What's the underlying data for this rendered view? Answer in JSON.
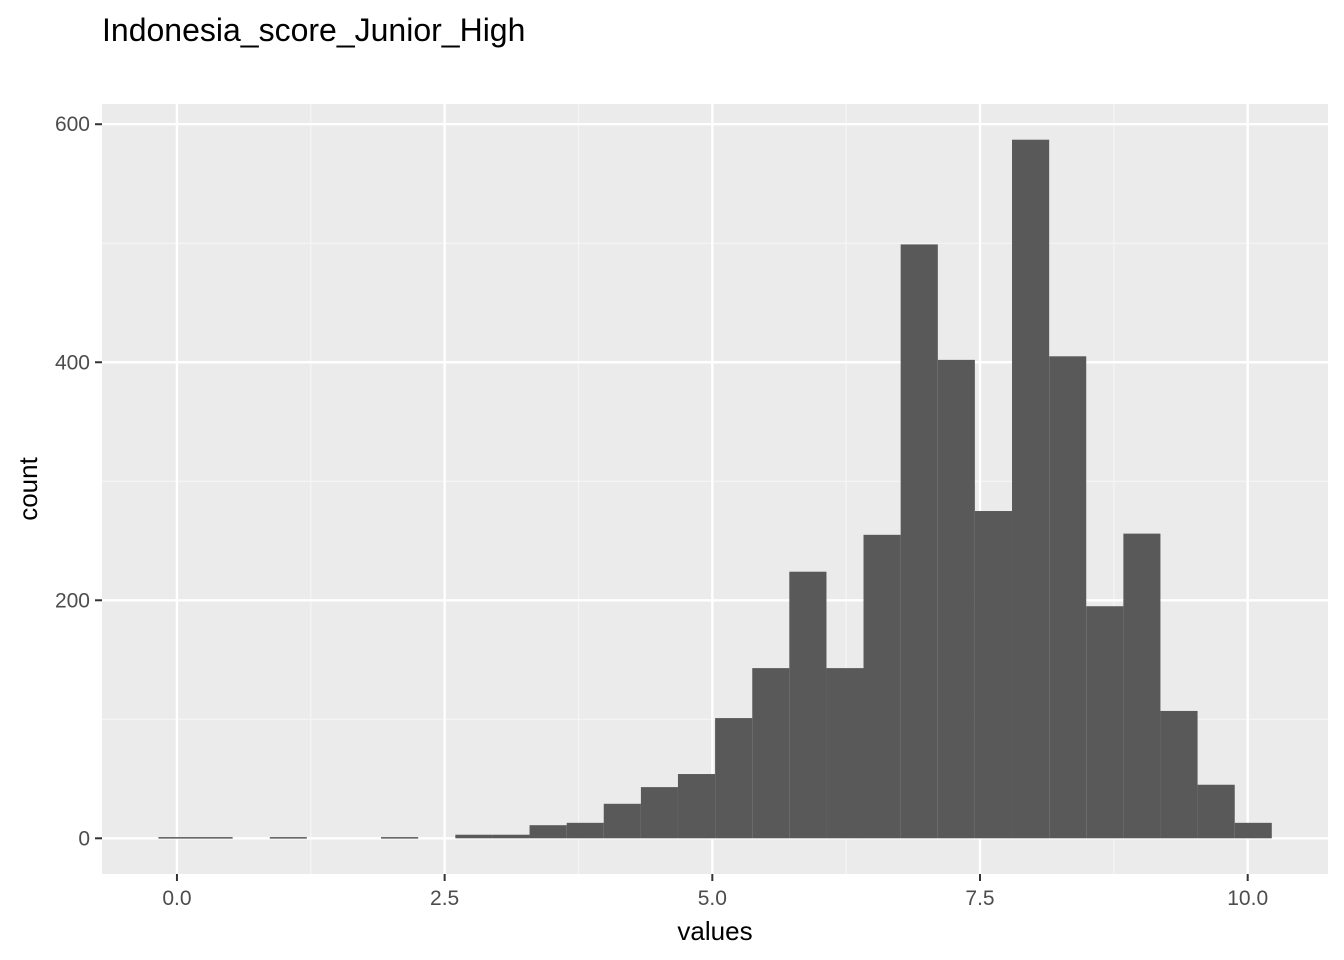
{
  "chart_data": {
    "type": "histogram",
    "title": "Indonesia_score_Junior_High",
    "xlabel": "values",
    "ylabel": "count",
    "xlim": [
      -0.7,
      10.75
    ],
    "ylim": [
      -30,
      617
    ],
    "x_ticks": [
      0.0,
      2.5,
      5.0,
      7.5,
      10.0
    ],
    "x_tick_labels": [
      "0.0",
      "2.5",
      "5.0",
      "7.5",
      "10.0"
    ],
    "y_ticks": [
      0,
      200,
      400,
      600
    ],
    "y_tick_labels": [
      "0",
      "200",
      "400",
      "600"
    ],
    "bin_width": 0.3466,
    "bins": [
      {
        "x0": -0.173,
        "x1": 0.173,
        "count": 1
      },
      {
        "x0": 0.173,
        "x1": 0.52,
        "count": 1
      },
      {
        "x0": 0.52,
        "x1": 0.867,
        "count": 0
      },
      {
        "x0": 0.867,
        "x1": 1.213,
        "count": 1
      },
      {
        "x0": 1.213,
        "x1": 1.56,
        "count": 0
      },
      {
        "x0": 1.56,
        "x1": 1.906,
        "count": 0
      },
      {
        "x0": 1.906,
        "x1": 2.253,
        "count": 1
      },
      {
        "x0": 2.253,
        "x1": 2.6,
        "count": 0
      },
      {
        "x0": 2.6,
        "x1": 2.946,
        "count": 3
      },
      {
        "x0": 2.946,
        "x1": 3.293,
        "count": 3
      },
      {
        "x0": 3.293,
        "x1": 3.64,
        "count": 11
      },
      {
        "x0": 3.64,
        "x1": 3.986,
        "count": 13
      },
      {
        "x0": 3.986,
        "x1": 4.333,
        "count": 29
      },
      {
        "x0": 4.333,
        "x1": 4.679,
        "count": 43
      },
      {
        "x0": 4.679,
        "x1": 5.026,
        "count": 54
      },
      {
        "x0": 5.026,
        "x1": 5.373,
        "count": 101
      },
      {
        "x0": 5.373,
        "x1": 5.719,
        "count": 143
      },
      {
        "x0": 5.719,
        "x1": 6.066,
        "count": 224
      },
      {
        "x0": 6.066,
        "x1": 6.412,
        "count": 143
      },
      {
        "x0": 6.412,
        "x1": 6.759,
        "count": 255
      },
      {
        "x0": 6.759,
        "x1": 7.106,
        "count": 499
      },
      {
        "x0": 7.106,
        "x1": 7.452,
        "count": 402
      },
      {
        "x0": 7.452,
        "x1": 7.799,
        "count": 275
      },
      {
        "x0": 7.799,
        "x1": 8.146,
        "count": 587
      },
      {
        "x0": 8.146,
        "x1": 8.492,
        "count": 405
      },
      {
        "x0": 8.492,
        "x1": 8.839,
        "count": 195
      },
      {
        "x0": 8.839,
        "x1": 9.185,
        "count": 256
      },
      {
        "x0": 9.185,
        "x1": 9.532,
        "count": 107
      },
      {
        "x0": 9.532,
        "x1": 9.879,
        "count": 45
      },
      {
        "x0": 9.879,
        "x1": 10.225,
        "count": 13
      }
    ],
    "grid": true,
    "legend": "none"
  },
  "colors": {
    "panel_background": "#ebebeb",
    "grid_major": "#ffffff",
    "grid_minor": "#f5f5f5",
    "bar_fill": "#595959",
    "tick_text": "#4d4d4d",
    "tick_mark": "#333333",
    "title_text": "#000000"
  }
}
